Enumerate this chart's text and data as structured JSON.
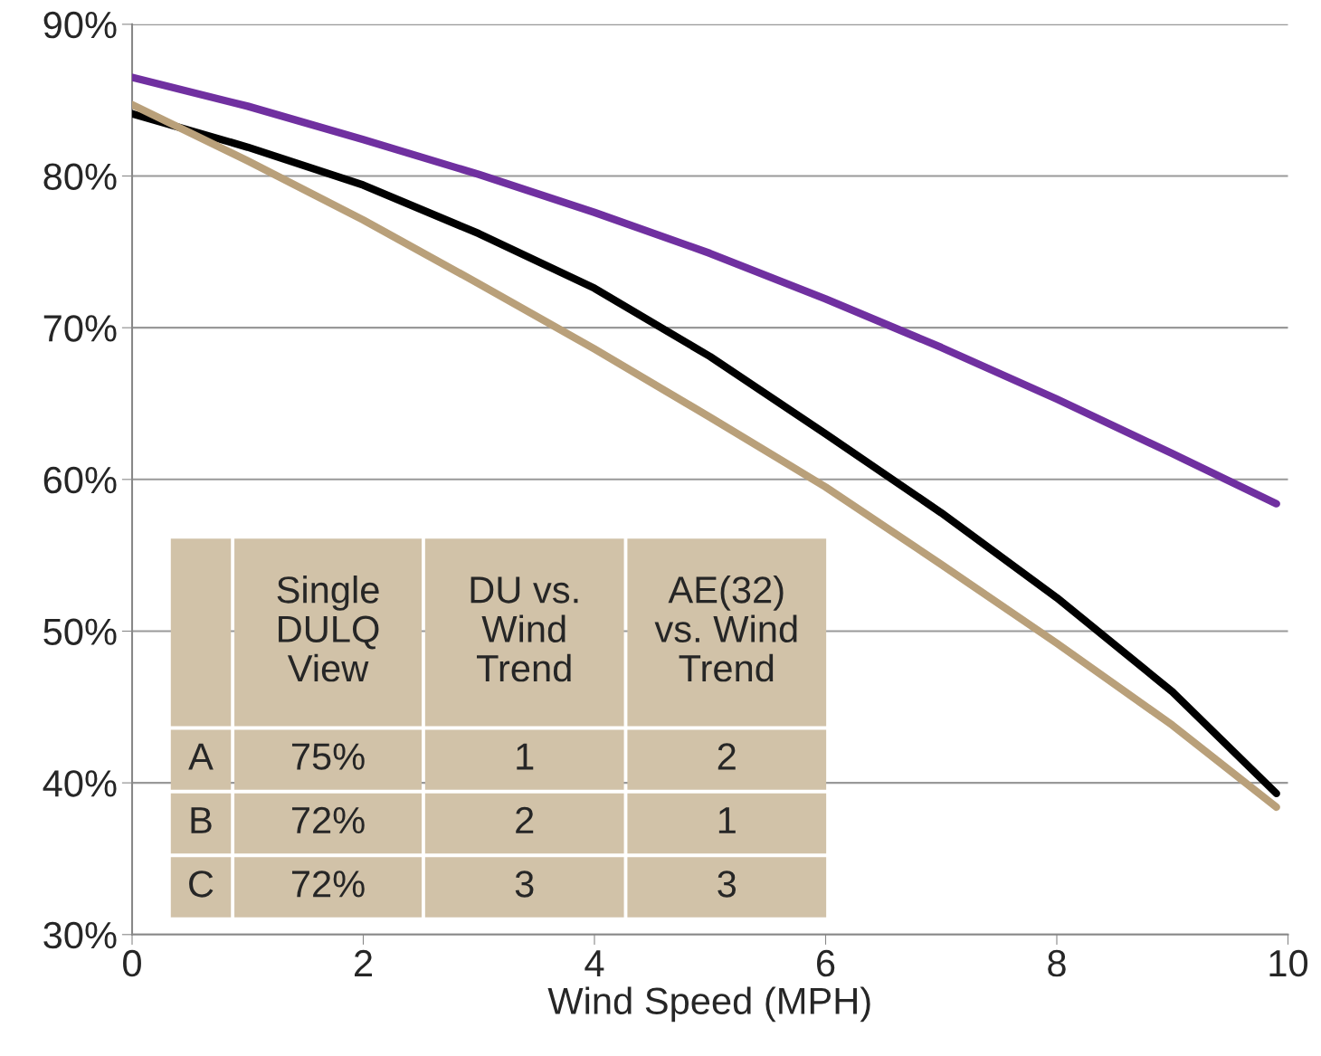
{
  "chart_data": {
    "type": "line",
    "xlabel": "Wind Speed (MPH)",
    "x": [
      0,
      1,
      2,
      3,
      4,
      5,
      6,
      7,
      8,
      9,
      9.9
    ],
    "series": [
      {
        "color": "#7030a0",
        "values": [
          86.5,
          84.6,
          82.4,
          80.1,
          77.6,
          74.9,
          71.9,
          68.7,
          65.3,
          61.7,
          58.4
        ]
      },
      {
        "color": "#000000",
        "values": [
          84.1,
          81.9,
          79.4,
          76.2,
          72.6,
          68.1,
          63.0,
          57.8,
          52.2,
          46.0,
          39.3
        ]
      },
      {
        "color": "#b9a07a",
        "values": [
          84.7,
          81.0,
          77.1,
          72.9,
          68.6,
          64.1,
          59.5,
          54.4,
          49.2,
          43.8,
          38.4
        ]
      }
    ],
    "xlim": [
      0,
      10
    ],
    "ylim": [
      30,
      90
    ],
    "xticks": [
      0,
      2,
      4,
      6,
      8,
      10
    ],
    "yticks": [
      {
        "value": 30,
        "label": "30%"
      },
      {
        "value": 40,
        "label": "40%"
      },
      {
        "value": 50,
        "label": "50%"
      },
      {
        "value": 60,
        "label": "60%"
      },
      {
        "value": 70,
        "label": "70%"
      },
      {
        "value": 80,
        "label": "80%"
      },
      {
        "value": 90,
        "label": "90%"
      }
    ],
    "grid": "y",
    "line_style": "solid",
    "marker": "none",
    "annotations": [
      "Single\nDULQ\nView",
      "DU vs.\nWind\nTrend",
      "AE(32)\nvs. Wind\nTrend",
      "A",
      "75%",
      "1",
      "2",
      "B",
      "72%",
      "2",
      "1",
      "C",
      "72%",
      "3",
      "3"
    ]
  }
}
